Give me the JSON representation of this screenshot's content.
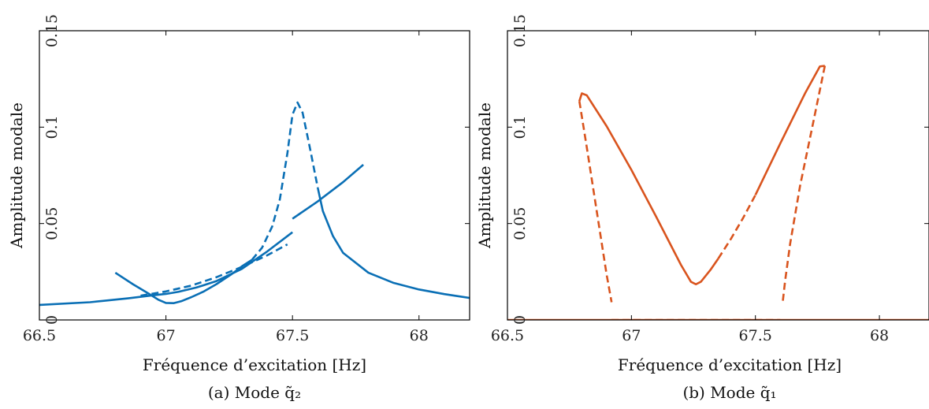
{
  "chart_data": [
    {
      "type": "line",
      "caption": "(a) Mode q̃₂",
      "xlabel": "Fréquence d’excitation [Hz]",
      "ylabel": "Amplitude modale",
      "xlim": [
        66.5,
        68.2
      ],
      "ylim": [
        0,
        0.15
      ],
      "xticks": [
        "66.5",
        "67",
        "67.5",
        "68"
      ],
      "yticks": [
        "0",
        "0.05",
        "0.1",
        "0.15"
      ],
      "color": "#0a6fb5",
      "series": [
        {
          "style": "solid",
          "x": [
            66.5,
            66.7,
            66.85,
            66.95,
            67.0,
            67.05,
            67.12,
            67.2,
            67.3,
            67.4,
            67.5
          ],
          "y": [
            0.0078,
            0.0092,
            0.0112,
            0.0128,
            0.0135,
            0.0146,
            0.0168,
            0.0202,
            0.0265,
            0.0355,
            0.0455
          ]
        },
        {
          "style": "solid",
          "x": [
            66.8,
            66.87,
            66.93,
            66.97,
            67.0,
            67.03,
            67.06,
            67.1,
            67.15,
            67.2,
            67.26,
            67.3,
            67.34
          ],
          "y": [
            0.0245,
            0.0185,
            0.0138,
            0.0105,
            0.0088,
            0.0087,
            0.0097,
            0.0118,
            0.0148,
            0.0186,
            0.0238,
            0.0278,
            0.0312
          ]
        },
        {
          "style": "dashed",
          "x": [
            66.9,
            67.0,
            67.1,
            67.2,
            67.3,
            67.4,
            67.48
          ],
          "y": [
            0.0126,
            0.0148,
            0.0178,
            0.0222,
            0.0275,
            0.0335,
            0.0392
          ]
        },
        {
          "style": "dashed",
          "x": [
            67.34,
            67.38,
            67.42,
            67.45,
            67.48,
            67.5,
            67.52,
            67.54,
            67.57,
            67.6
          ],
          "y": [
            0.0312,
            0.0375,
            0.0485,
            0.0625,
            0.0865,
            0.1065,
            0.1128,
            0.1075,
            0.0885,
            0.0685
          ]
        },
        {
          "style": "solid",
          "x": [
            67.5,
            67.6,
            67.7,
            67.78
          ],
          "y": [
            0.0525,
            0.0615,
            0.0715,
            0.0805
          ]
        },
        {
          "style": "solid",
          "x": [
            67.6,
            67.62,
            67.66,
            67.7,
            67.8,
            67.9,
            68.0,
            68.1,
            68.2
          ],
          "y": [
            0.0685,
            0.0565,
            0.0435,
            0.0348,
            0.0245,
            0.0192,
            0.0158,
            0.0134,
            0.0114
          ]
        }
      ]
    },
    {
      "type": "line",
      "caption": "(b) Mode q̃₁",
      "xlabel": "Fréquence d’excitation [Hz]",
      "ylabel": "Amplitude modale",
      "xlim": [
        66.5,
        68.2
      ],
      "ylim": [
        0,
        0.15
      ],
      "xticks": [
        "66.5",
        "67",
        "67.5",
        "68"
      ],
      "yticks": [
        "0",
        "0.05",
        "0.1",
        "0.15"
      ],
      "color": "#d9541e",
      "series": [
        {
          "style": "solid",
          "x": [
            66.5,
            68.2
          ],
          "y": [
            0.0,
            0.0
          ]
        },
        {
          "style": "dashed",
          "x": [
            66.92,
            67.6
          ],
          "y": [
            0.0,
            0.0
          ]
        },
        {
          "style": "dashed",
          "x": [
            66.79,
            66.82,
            66.86,
            66.9,
            66.92
          ],
          "y": [
            0.1135,
            0.0895,
            0.0565,
            0.0235,
            0.0092
          ]
        },
        {
          "style": "solid",
          "x": [
            66.79,
            66.8,
            66.82,
            66.9,
            67.0,
            67.1,
            67.2,
            67.24,
            67.26,
            67.28,
            67.32,
            67.35
          ],
          "y": [
            0.1135,
            0.1175,
            0.1165,
            0.1005,
            0.0778,
            0.0535,
            0.0285,
            0.0198,
            0.0185,
            0.0198,
            0.0262,
            0.0318
          ]
        },
        {
          "style": "dashed",
          "x": [
            67.35,
            67.4,
            67.45,
            67.5
          ],
          "y": [
            0.0318,
            0.0418,
            0.0528,
            0.0648
          ]
        },
        {
          "style": "solid",
          "x": [
            67.5,
            67.6,
            67.7,
            67.76,
            67.78
          ],
          "y": [
            0.0648,
            0.0915,
            0.1175,
            0.1315,
            0.1318
          ]
        },
        {
          "style": "dashed",
          "x": [
            67.78,
            67.73,
            67.68,
            67.64,
            67.62,
            67.61
          ],
          "y": [
            0.1318,
            0.1005,
            0.0695,
            0.0395,
            0.0205,
            0.0092
          ]
        }
      ]
    }
  ]
}
